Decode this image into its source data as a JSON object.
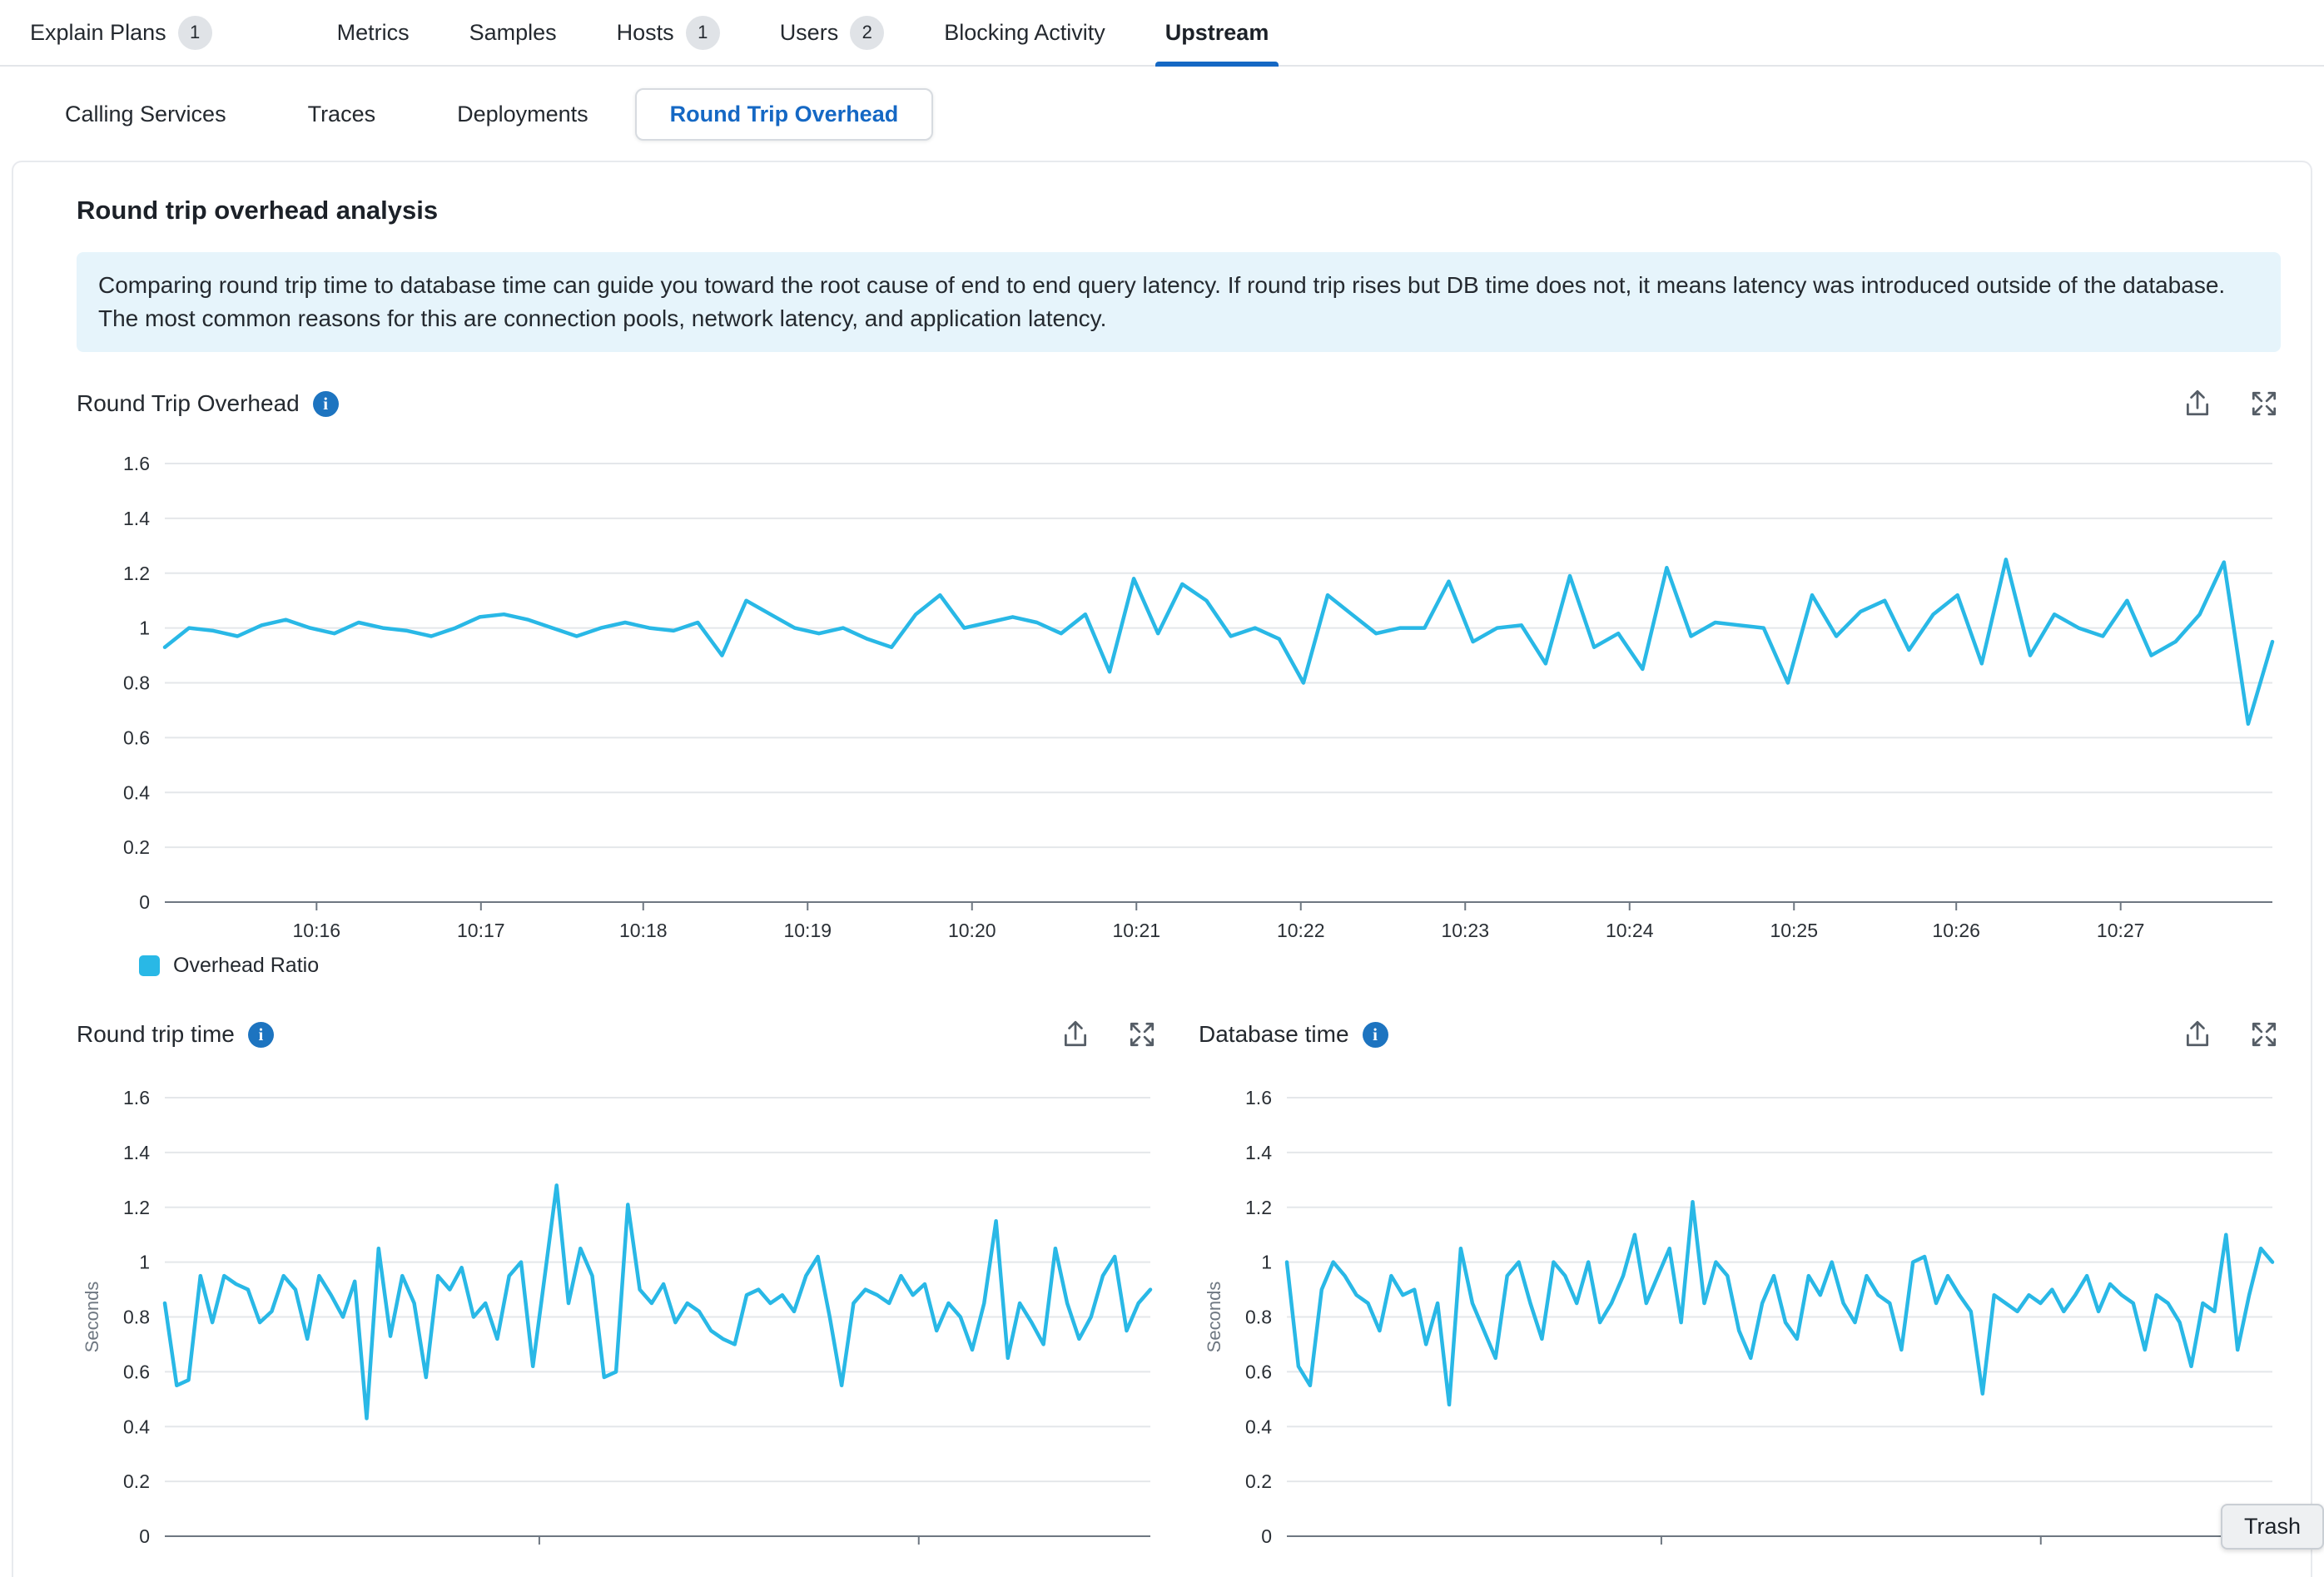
{
  "colors": {
    "accent_blue": "#1568c4",
    "line_cyan": "#29b8e6",
    "banner_bg": "#e6f4fb",
    "badge_bg": "#e0e3e7"
  },
  "top_nav": {
    "items": [
      {
        "label": "Explain Plans",
        "badge": "1"
      },
      {
        "label": "Metrics"
      },
      {
        "label": "Samples"
      },
      {
        "label": "Hosts",
        "badge": "1"
      },
      {
        "label": "Users",
        "badge": "2"
      },
      {
        "label": "Blocking Activity"
      },
      {
        "label": "Upstream",
        "active": true
      }
    ]
  },
  "sub_nav": {
    "items": [
      {
        "label": "Calling Services"
      },
      {
        "label": "Traces"
      },
      {
        "label": "Deployments"
      },
      {
        "label": "Round Trip Overhead",
        "active": true
      }
    ]
  },
  "page": {
    "title": "Round trip overhead analysis",
    "info_banner": "Comparing round trip time to database time can guide you toward the root cause of end to end query latency. If round trip rises but DB time does not, it means latency was introduced outside of the database. The most common reasons for this are connection pools, network latency, and application latency."
  },
  "icons": {
    "info_glyph": "i"
  },
  "trash_button": {
    "label": "Trash"
  },
  "chart_data": [
    {
      "type": "line",
      "title": "Round Trip Overhead",
      "color": "#29b8e6",
      "ylim": [
        0,
        1.6
      ],
      "y_ticks": [
        0,
        0.2,
        0.4,
        0.6,
        0.8,
        1,
        1.2,
        1.4,
        1.6
      ],
      "ylabel": "",
      "grid": "horizontal",
      "legend_position": "bottom",
      "x_ticks": [
        {
          "label": "10:16",
          "pos": 0.072
        },
        {
          "label": "10:17",
          "pos": 0.15
        },
        {
          "label": "10:18",
          "pos": 0.227
        },
        {
          "label": "10:19",
          "pos": 0.305
        },
        {
          "label": "10:20",
          "pos": 0.383
        },
        {
          "label": "10:21",
          "pos": 0.461
        },
        {
          "label": "10:22",
          "pos": 0.539
        },
        {
          "label": "10:23",
          "pos": 0.617
        },
        {
          "label": "10:24",
          "pos": 0.695
        },
        {
          "label": "10:25",
          "pos": 0.773
        },
        {
          "label": "10:26",
          "pos": 0.85
        },
        {
          "label": "10:27",
          "pos": 0.928
        }
      ],
      "series": [
        {
          "name": "Overhead Ratio",
          "values": [
            0.93,
            1.0,
            0.99,
            0.97,
            1.01,
            1.03,
            1.0,
            0.98,
            1.02,
            1.0,
            0.99,
            0.97,
            1.0,
            1.04,
            1.05,
            1.03,
            1.0,
            0.97,
            1.0,
            1.02,
            1.0,
            0.99,
            1.02,
            0.9,
            1.1,
            1.05,
            1.0,
            0.98,
            1.0,
            0.96,
            0.93,
            1.05,
            1.12,
            1.0,
            1.02,
            1.04,
            1.02,
            0.98,
            1.05,
            0.84,
            1.18,
            0.98,
            1.16,
            1.1,
            0.97,
            1.0,
            0.96,
            0.8,
            1.12,
            1.05,
            0.98,
            1.0,
            1.0,
            1.17,
            0.95,
            1.0,
            1.01,
            0.87,
            1.19,
            0.93,
            0.98,
            0.85,
            1.22,
            0.97,
            1.02,
            1.01,
            1.0,
            0.8,
            1.12,
            0.97,
            1.06,
            1.1,
            0.92,
            1.05,
            1.12,
            0.87,
            1.25,
            0.9,
            1.05,
            1.0,
            0.97,
            1.1,
            0.9,
            0.95,
            1.05,
            1.24,
            0.65,
            0.95
          ]
        }
      ]
    },
    {
      "type": "line",
      "title": "Round trip time",
      "color": "#29b8e6",
      "ylim": [
        0,
        1.6
      ],
      "y_ticks": [
        0,
        0.2,
        0.4,
        0.6,
        0.8,
        1,
        1.2,
        1.4,
        1.6
      ],
      "ylabel": "Seconds",
      "grid": "horizontal",
      "x_ticks": [
        {
          "label": "",
          "pos": 0.38
        },
        {
          "label": "",
          "pos": 0.765
        }
      ],
      "series": [
        {
          "values": [
            0.85,
            0.55,
            0.57,
            0.95,
            0.78,
            0.95,
            0.92,
            0.9,
            0.78,
            0.82,
            0.95,
            0.9,
            0.72,
            0.95,
            0.88,
            0.8,
            0.93,
            0.43,
            1.05,
            0.73,
            0.95,
            0.85,
            0.58,
            0.95,
            0.9,
            0.98,
            0.8,
            0.85,
            0.72,
            0.95,
            1.0,
            0.62,
            0.95,
            1.28,
            0.85,
            1.05,
            0.95,
            0.58,
            0.6,
            1.21,
            0.9,
            0.85,
            0.92,
            0.78,
            0.85,
            0.82,
            0.75,
            0.72,
            0.7,
            0.88,
            0.9,
            0.85,
            0.88,
            0.82,
            0.95,
            1.02,
            0.8,
            0.55,
            0.85,
            0.9,
            0.88,
            0.85,
            0.95,
            0.88,
            0.92,
            0.75,
            0.85,
            0.8,
            0.68,
            0.85,
            1.15,
            0.65,
            0.85,
            0.78,
            0.7,
            1.05,
            0.85,
            0.72,
            0.8,
            0.95,
            1.02,
            0.75,
            0.85,
            0.9
          ]
        }
      ]
    },
    {
      "type": "line",
      "title": "Database time",
      "color": "#29b8e6",
      "ylim": [
        0,
        1.6
      ],
      "y_ticks": [
        0,
        0.2,
        0.4,
        0.6,
        0.8,
        1,
        1.2,
        1.4,
        1.6
      ],
      "ylabel": "Seconds",
      "grid": "horizontal",
      "x_ticks": [
        {
          "label": "",
          "pos": 0.38
        },
        {
          "label": "",
          "pos": 0.765
        }
      ],
      "series": [
        {
          "values": [
            1.0,
            0.62,
            0.55,
            0.9,
            1.0,
            0.95,
            0.88,
            0.85,
            0.75,
            0.95,
            0.88,
            0.9,
            0.7,
            0.85,
            0.48,
            1.05,
            0.85,
            0.75,
            0.65,
            0.95,
            1.0,
            0.85,
            0.72,
            1.0,
            0.95,
            0.85,
            1.0,
            0.78,
            0.85,
            0.95,
            1.1,
            0.85,
            0.95,
            1.05,
            0.78,
            1.22,
            0.85,
            1.0,
            0.95,
            0.75,
            0.65,
            0.85,
            0.95,
            0.78,
            0.72,
            0.95,
            0.88,
            1.0,
            0.85,
            0.78,
            0.95,
            0.88,
            0.85,
            0.68,
            1.0,
            1.02,
            0.85,
            0.95,
            0.88,
            0.82,
            0.52,
            0.88,
            0.85,
            0.82,
            0.88,
            0.85,
            0.9,
            0.82,
            0.88,
            0.95,
            0.82,
            0.92,
            0.88,
            0.85,
            0.68,
            0.88,
            0.85,
            0.78,
            0.62,
            0.85,
            0.82,
            1.1,
            0.68,
            0.88,
            1.05,
            1.0
          ]
        }
      ]
    }
  ]
}
